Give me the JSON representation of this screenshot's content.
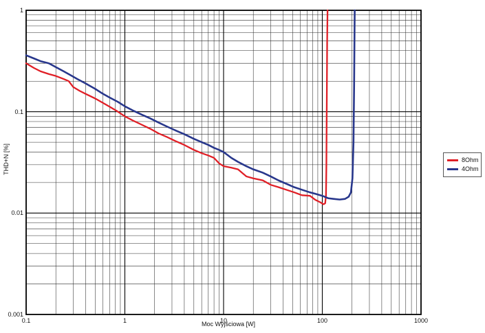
{
  "chart_data": {
    "type": "line",
    "title": "",
    "xlabel": "Moc Wyjściowa [W]",
    "ylabel": "THD+N [%]",
    "x_scale": "log",
    "y_scale": "log",
    "xlim": [
      0.1,
      1000
    ],
    "ylim": [
      0.001,
      1
    ],
    "grid": {
      "minor": true,
      "minor_color": "#2a2a2a",
      "major_color": "#000000"
    },
    "frame_color": "#000000",
    "legend_position": "right-outside",
    "x_ticks": [
      {
        "v": 0.1,
        "label": "0.1"
      },
      {
        "v": 1,
        "label": "1"
      },
      {
        "v": 10,
        "label": "10"
      },
      {
        "v": 100,
        "label": "100"
      },
      {
        "v": 1000,
        "label": "1000"
      }
    ],
    "y_ticks": [
      {
        "v": 1,
        "label": "1"
      },
      {
        "v": 0.1,
        "label": "0.1"
      },
      {
        "v": 0.01,
        "label": "0.01"
      },
      {
        "v": 0.001,
        "label": "0.001"
      }
    ],
    "series": [
      {
        "name": "8Ohm",
        "color": "#e01f26",
        "width": 2.3,
        "points": [
          [
            0.1,
            0.3
          ],
          [
            0.12,
            0.27
          ],
          [
            0.14,
            0.25
          ],
          [
            0.17,
            0.235
          ],
          [
            0.2,
            0.225
          ],
          [
            0.24,
            0.21
          ],
          [
            0.27,
            0.2
          ],
          [
            0.3,
            0.175
          ],
          [
            0.35,
            0.16
          ],
          [
            0.4,
            0.15
          ],
          [
            0.5,
            0.135
          ],
          [
            0.6,
            0.122
          ],
          [
            0.7,
            0.112
          ],
          [
            0.85,
            0.1
          ],
          [
            1.0,
            0.09
          ],
          [
            1.2,
            0.082
          ],
          [
            1.5,
            0.074
          ],
          [
            1.8,
            0.068
          ],
          [
            2.2,
            0.061
          ],
          [
            2.7,
            0.056
          ],
          [
            3.3,
            0.051
          ],
          [
            4,
            0.047
          ],
          [
            5,
            0.042
          ],
          [
            6,
            0.039
          ],
          [
            7,
            0.037
          ],
          [
            8,
            0.035
          ],
          [
            9,
            0.031
          ],
          [
            10,
            0.029
          ],
          [
            12,
            0.028
          ],
          [
            14,
            0.027
          ],
          [
            17,
            0.023
          ],
          [
            20,
            0.022
          ],
          [
            25,
            0.021
          ],
          [
            30,
            0.019
          ],
          [
            36,
            0.018
          ],
          [
            43,
            0.017
          ],
          [
            52,
            0.016
          ],
          [
            62,
            0.015
          ],
          [
            75,
            0.0148
          ],
          [
            85,
            0.0135
          ],
          [
            95,
            0.0128
          ],
          [
            103,
            0.0122
          ],
          [
            107,
            0.0125
          ],
          [
            109,
            0.015
          ],
          [
            110,
            0.03
          ],
          [
            111,
            0.12
          ],
          [
            112,
            0.5
          ],
          [
            113,
            1.0
          ]
        ]
      },
      {
        "name": "4Ohm",
        "color": "#28378c",
        "width": 2.6,
        "points": [
          [
            0.1,
            0.36
          ],
          [
            0.12,
            0.335
          ],
          [
            0.14,
            0.315
          ],
          [
            0.17,
            0.3
          ],
          [
            0.2,
            0.275
          ],
          [
            0.24,
            0.25
          ],
          [
            0.28,
            0.23
          ],
          [
            0.33,
            0.21
          ],
          [
            0.4,
            0.19
          ],
          [
            0.5,
            0.168
          ],
          [
            0.6,
            0.15
          ],
          [
            0.7,
            0.138
          ],
          [
            0.85,
            0.125
          ],
          [
            1.0,
            0.113
          ],
          [
            1.2,
            0.103
          ],
          [
            1.5,
            0.093
          ],
          [
            1.8,
            0.086
          ],
          [
            2.2,
            0.078
          ],
          [
            2.7,
            0.071
          ],
          [
            3.3,
            0.065
          ],
          [
            4,
            0.06
          ],
          [
            5,
            0.054
          ],
          [
            6,
            0.05
          ],
          [
            7,
            0.047
          ],
          [
            8,
            0.044
          ],
          [
            9,
            0.042
          ],
          [
            10,
            0.04
          ],
          [
            12,
            0.035
          ],
          [
            14,
            0.032
          ],
          [
            17,
            0.029
          ],
          [
            20,
            0.027
          ],
          [
            25,
            0.025
          ],
          [
            30,
            0.023
          ],
          [
            36,
            0.021
          ],
          [
            43,
            0.0195
          ],
          [
            52,
            0.018
          ],
          [
            62,
            0.017
          ],
          [
            75,
            0.016
          ],
          [
            85,
            0.0155
          ],
          [
            100,
            0.0148
          ],
          [
            115,
            0.014
          ],
          [
            130,
            0.0138
          ],
          [
            150,
            0.0136
          ],
          [
            170,
            0.0138
          ],
          [
            185,
            0.0145
          ],
          [
            195,
            0.016
          ],
          [
            202,
            0.022
          ],
          [
            207,
            0.05
          ],
          [
            210,
            0.18
          ],
          [
            212,
            0.6
          ],
          [
            213,
            1.0
          ]
        ]
      }
    ]
  }
}
